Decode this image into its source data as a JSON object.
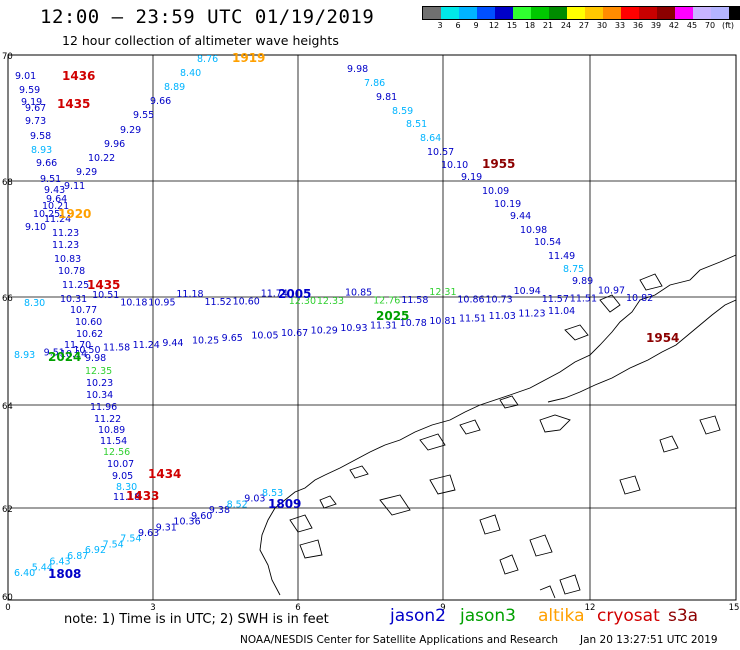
{
  "title": "12:00 – 23:59 UTC 01/19/2019",
  "subtitle": "12 hour collection of altimeter wave heights",
  "color_scale": {
    "unit": "(ft)",
    "ticks": [
      "3",
      "6",
      "9",
      "12",
      "15",
      "18",
      "21",
      "24",
      "27",
      "30",
      "33",
      "36",
      "39",
      "42",
      "45",
      "70"
    ],
    "colors": [
      "#707070",
      "#00e8e8",
      "#00b4ff",
      "#0050ff",
      "#0000c8",
      "#30ff30",
      "#00c800",
      "#008c00",
      "#ffff00",
      "#ffc800",
      "#ff8c00",
      "#ff0000",
      "#c80000",
      "#8c0000",
      "#ff00ff",
      "#c8b4ff",
      "#b4b4ff",
      "#000000"
    ]
  },
  "axes": {
    "lon_labels": [
      "0",
      "3",
      "6",
      "9",
      "12",
      "15"
    ],
    "lat_labels": [
      "70",
      "68",
      "66",
      "64",
      "62",
      "60"
    ]
  },
  "note": "note:  1) Time is in UTC;  2) SWH is in feet",
  "legend": [
    {
      "name": "jason2",
      "color": "#0000c8"
    },
    {
      "name": "jason3",
      "color": "#00a000"
    },
    {
      "name": "altika",
      "color": "#ffa000"
    },
    {
      "name": "cryosat",
      "color": "#d00000"
    },
    {
      "name": "s3a",
      "color": "#8c0000"
    }
  ],
  "credit": "NOAA/NESDIS Center for Satellite Applications and Research",
  "timestamp": "Jan 20 13:27:51 UTC 2019",
  "tracks": {
    "time_labels": [
      {
        "text": "1436",
        "sat": "cryosat"
      },
      {
        "text": "1435",
        "sat": "cryosat"
      },
      {
        "text": "1920",
        "sat": "altika"
      },
      {
        "text": "1435",
        "sat": "cryosat"
      },
      {
        "text": "2024",
        "sat": "jason3"
      },
      {
        "text": "1434",
        "sat": "cryosat"
      },
      {
        "text": "1433",
        "sat": "cryosat"
      },
      {
        "text": "1808",
        "sat": "jason2"
      },
      {
        "text": "1919",
        "sat": "altika"
      },
      {
        "text": "1955",
        "sat": "s3a"
      },
      {
        "text": "1954",
        "sat": "s3a"
      },
      {
        "text": "2005",
        "sat": "jason2"
      },
      {
        "text": "2025",
        "sat": "jason3"
      },
      {
        "text": "1809",
        "sat": "jason2"
      }
    ],
    "track_a_values": [
      "9.01",
      "9.59",
      "9.19",
      "9.67",
      "9.73",
      "9.58",
      "8.93",
      "9.66",
      "9.51",
      "9.43",
      "9.64",
      "10.21",
      "10.25",
      "9.10",
      "11.23",
      "11.23",
      "10.83",
      "10.78",
      "11.25",
      "10.31",
      "10.77",
      "10.60",
      "10.62",
      "11.70",
      "10.14",
      "9.98",
      "12.35",
      "10.23",
      "10.34",
      "11.96",
      "11.22",
      "10.89",
      "11.54",
      "12.56",
      "10.07",
      "9.05",
      "8.30",
      "11.18"
    ],
    "track_b_values": [
      "8.76",
      "8.40",
      "8.89",
      "9.66",
      "9.55",
      "9.29",
      "9.96",
      "10.22",
      "9.29",
      "9.11",
      "11.24"
    ],
    "track_c_values": [
      "9.98",
      "7.86",
      "9.81",
      "8.59",
      "8.51",
      "8.64",
      "10.57",
      "10.10",
      "9.19",
      "10.09",
      "10.19",
      "9.44",
      "10.98",
      "10.54",
      "11.49",
      "8.75",
      "9.89"
    ],
    "track_d_values": [
      "8.30",
      "10.51",
      "10.18",
      "10.95",
      "11.18",
      "11.52",
      "10.60",
      "11.74",
      "12.30",
      "12.33",
      "10.85",
      "12.76",
      "11.58",
      "12.31",
      "10.86",
      "10.73",
      "10.94",
      "11.57",
      "11.51",
      "10.97",
      "10.82"
    ],
    "track_e_values": [
      "8.93",
      "9.51",
      "10.50",
      "11.58",
      "11.24",
      "9.44",
      "10.25",
      "9.65",
      "10.05",
      "10.67",
      "10.29",
      "10.93",
      "11.31",
      "10.78",
      "10.81",
      "11.51",
      "11.03",
      "11.23",
      "11.04"
    ],
    "track_f_values": [
      "6.40",
      "5.44",
      "6.43",
      "6.87",
      "6.92",
      "7.54",
      "7.54",
      "9.63",
      "9.31",
      "10.36",
      "9.60",
      "9.38",
      "8.52",
      "9.03",
      "8.53"
    ]
  }
}
